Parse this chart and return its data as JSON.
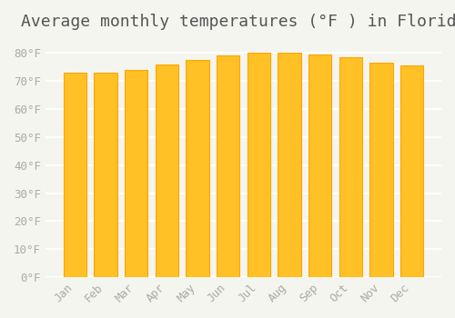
{
  "title": "Average monthly temperatures (°F ) in Florida",
  "months": [
    "Jan",
    "Feb",
    "Mar",
    "Apr",
    "May",
    "Jun",
    "Jul",
    "Aug",
    "Sep",
    "Oct",
    "Nov",
    "Dec"
  ],
  "values": [
    73,
    73,
    74,
    76,
    77.5,
    79,
    80,
    80,
    79.5,
    78.5,
    76.5,
    75.5
  ],
  "bar_color_main": "#FFC125",
  "bar_color_edge": "#FFA500",
  "background_color": "#f5f5f0",
  "grid_color": "#ffffff",
  "ylim": [
    0,
    85
  ],
  "yticks": [
    0,
    10,
    20,
    30,
    40,
    50,
    60,
    70,
    80
  ],
  "ytick_labels": [
    "0°F",
    "10°F",
    "20°F",
    "30°F",
    "40°F",
    "50°F",
    "60°F",
    "70°F",
    "80°F"
  ],
  "title_fontsize": 13,
  "tick_fontsize": 9,
  "font_color": "#aaaaaa",
  "title_color": "#555555"
}
